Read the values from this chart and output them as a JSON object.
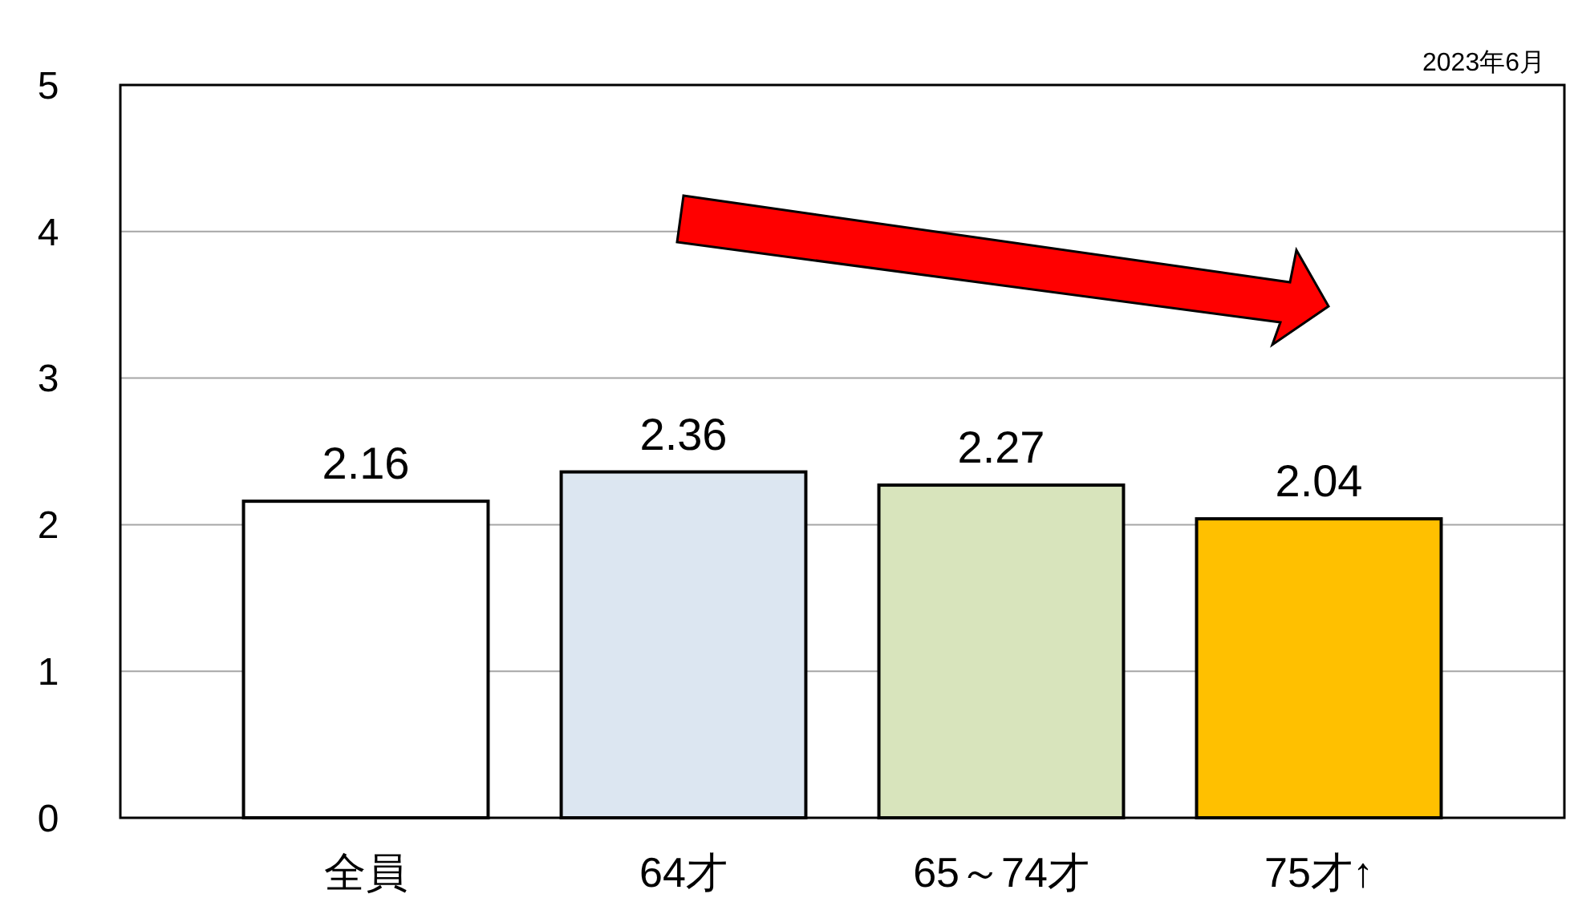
{
  "chart_data": {
    "type": "bar",
    "categories": [
      "全員",
      "64才",
      "65～74才",
      "75才↑"
    ],
    "values": [
      2.16,
      2.36,
      2.27,
      2.04
    ],
    "colors": [
      "#ffffff",
      "#dce6f1",
      "#d8e4bc",
      "#ffc000"
    ],
    "ylim": [
      0,
      5
    ],
    "yticks": [
      0,
      1,
      2,
      3,
      4,
      5
    ],
    "grid": "y",
    "data_labels": true,
    "annotations": [
      "2023年6月"
    ]
  }
}
